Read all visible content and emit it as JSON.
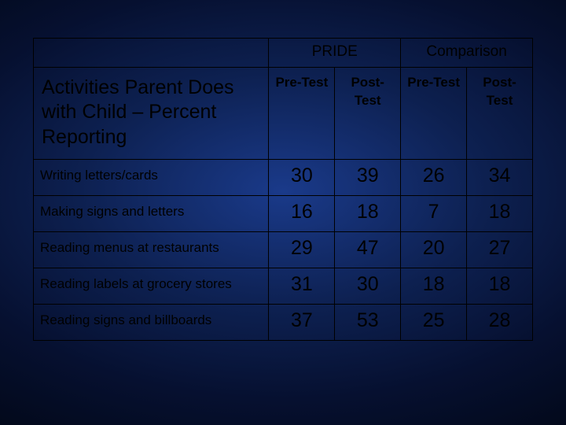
{
  "table": {
    "group_headers": [
      "PRIDE",
      "Comparison"
    ],
    "sub_headers": [
      "Pre-Test",
      "Post-Test",
      "Pre-Test",
      "Post-Test"
    ],
    "row_title": "Activities Parent Does with Child – Percent Reporting",
    "rows": [
      {
        "activity": "Writing letters/cards",
        "values": [
          30,
          39,
          26,
          34
        ]
      },
      {
        "activity": "Making signs and letters",
        "values": [
          16,
          18,
          7,
          18
        ]
      },
      {
        "activity": "Reading menus at restaurants",
        "values": [
          29,
          47,
          20,
          27
        ]
      },
      {
        "activity": "Reading labels at grocery stores",
        "values": [
          31,
          30,
          18,
          18
        ]
      },
      {
        "activity": "Reading signs and billboards",
        "values": [
          37,
          53,
          25,
          28
        ]
      }
    ],
    "columns": [
      "row_label",
      "pride_pre",
      "pride_post",
      "comp_pre",
      "comp_post"
    ],
    "colors": {
      "border": "#000000",
      "text": "#000000",
      "bg_gradient_inner": "#1a3a8a",
      "bg_gradient_outer": "#020818"
    },
    "font": {
      "family": "Arial",
      "title_size_pt": 19,
      "cell_size_pt": 19
    }
  }
}
